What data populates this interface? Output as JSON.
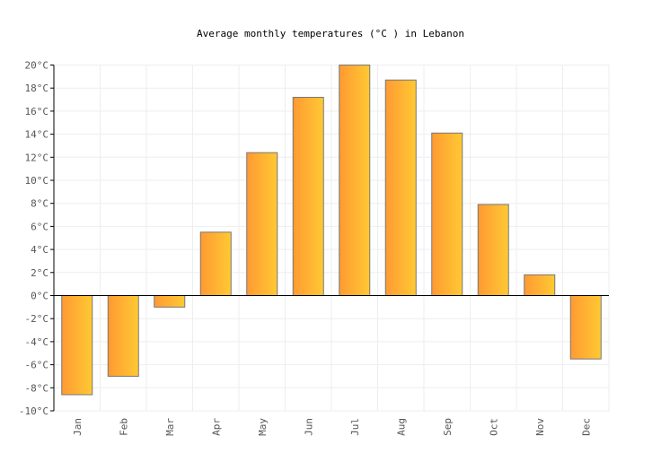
{
  "chart_data": {
    "type": "bar",
    "title": "Average monthly temperatures (°C ) in Lebanon",
    "categories": [
      "Jan",
      "Feb",
      "Mar",
      "Apr",
      "May",
      "Jun",
      "Jul",
      "Aug",
      "Sep",
      "Oct",
      "Nov",
      "Dec"
    ],
    "values": [
      -8.6,
      -7.0,
      -1.0,
      5.5,
      12.4,
      17.2,
      20.0,
      18.7,
      14.1,
      7.9,
      1.8,
      -5.5
    ],
    "unit": "°C",
    "ylim": [
      -10,
      20
    ],
    "yticks": [
      "-10°C",
      "-8°C",
      "-6°C",
      "-4°C",
      "-2°C",
      "0°C",
      "2°C",
      "4°C",
      "6°C",
      "8°C",
      "10°C",
      "12°C",
      "14°C",
      "16°C",
      "18°C",
      "20°C"
    ],
    "grid": true,
    "legend": "none",
    "colors": {
      "bar_start": "#ff9a33",
      "bar_end": "#ffc933",
      "bar_stroke": "#777777",
      "grid": "#eeeeee"
    }
  }
}
